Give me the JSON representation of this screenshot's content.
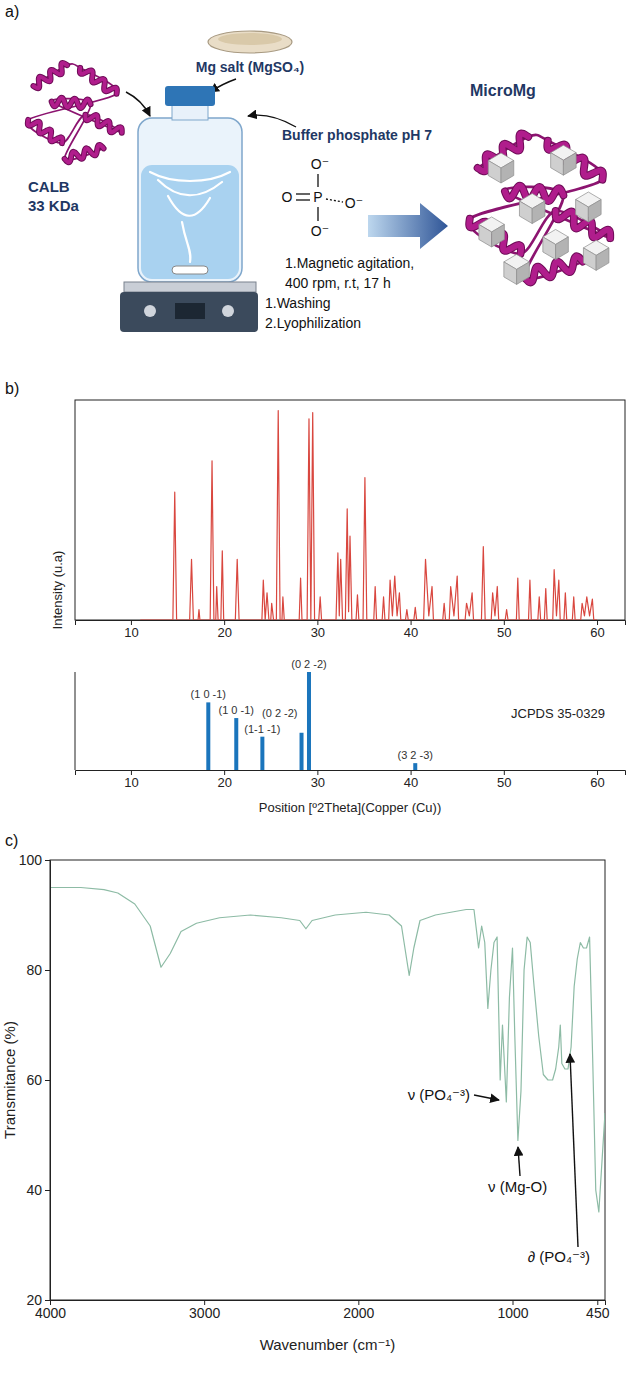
{
  "panel_labels": [
    "a)",
    "b)",
    "c)"
  ],
  "diagram": {
    "salt": "Mg salt (MgSO₄)",
    "enzyme": "CALB",
    "enzyme_mass": "33 KDa",
    "buffer": "Buffer phosphate pH 7",
    "phosphate": {
      "center": "P",
      "double_bonded": "O",
      "single_bonded": [
        "O⁻",
        "O⁻",
        "O⁻"
      ]
    },
    "steps": [
      "1.Magnetic agitation,",
      "400 rpm, r.t, 17 h",
      "1.Washing",
      "2.Lyophilization"
    ],
    "product": "MicroMg"
  },
  "chart_data": [
    {
      "type": "line",
      "y_label": "Intensity (u.a)",
      "x": [
        11.0,
        14.5,
        14.7,
        14.9,
        16.3,
        16.5,
        16.7,
        17.2,
        17.3,
        17.4,
        18.5,
        18.7,
        18.9,
        19.1,
        19.2,
        19.35,
        19.65,
        19.8,
        19.95,
        21.2,
        21.4,
        21.6,
        24.05,
        24.2,
        24.4,
        24.6,
        24.8,
        25.0,
        25.1,
        25.3,
        25.6,
        25.8,
        26.0,
        26.2,
        26.3,
        26.45,
        28.05,
        28.2,
        28.35,
        28.9,
        29.1,
        29.3,
        29.5,
        29.7,
        30.15,
        30.3,
        30.45,
        32.0,
        32.2,
        32.35,
        32.5,
        32.7,
        33.0,
        33.2,
        33.35,
        33.5,
        33.7,
        34.15,
        34.3,
        34.45,
        34.9,
        35.1,
        35.3,
        36.05,
        36.2,
        36.35,
        36.95,
        37.1,
        37.25,
        37.65,
        37.8,
        38.05,
        38.3,
        38.55,
        38.8,
        38.95,
        39.45,
        39.6,
        39.75,
        40.35,
        40.5,
        40.65,
        41.4,
        41.6,
        41.95,
        42.3,
        42.45,
        43.45,
        43.6,
        43.75,
        44.15,
        44.3,
        44.65,
        45.0,
        45.15,
        45.85,
        46.0,
        46.3,
        46.6,
        46.75,
        47.6,
        47.8,
        48.0,
        48.65,
        48.8,
        49.05,
        49.3,
        49.45,
        50.15,
        50.3,
        50.45,
        51.35,
        51.5,
        51.65,
        52.65,
        52.8,
        52.95,
        53.65,
        53.8,
        53.95,
        54.35,
        54.5,
        54.65,
        55.25,
        55.4,
        55.65,
        55.9,
        56.05,
        56.45,
        56.6,
        56.75,
        57.35,
        57.5,
        57.65,
        58.25,
        58.4,
        58.65,
        58.9,
        59.2,
        59.5,
        59.65,
        60.0
      ],
      "series": [
        {
          "color": "#d9473f",
          "values": [
            0,
            0,
            61,
            0,
            0,
            29,
            0,
            0,
            5,
            0,
            0,
            76,
            0,
            0,
            16,
            0,
            0,
            33,
            0,
            0,
            29,
            0,
            0,
            19,
            0,
            13,
            0,
            0,
            8,
            0,
            0,
            100,
            0,
            0,
            11,
            0,
            0,
            20,
            0,
            0,
            96,
            0,
            99,
            0,
            0,
            11,
            0,
            0,
            32,
            2,
            29,
            0,
            0,
            53,
            4,
            40,
            0,
            0,
            12,
            0,
            0,
            68,
            0,
            0,
            16,
            0,
            0,
            11,
            0,
            0,
            19,
            2,
            21,
            2,
            13,
            0,
            0,
            5,
            0,
            0,
            6,
            0,
            0,
            29,
            2,
            16,
            0,
            0,
            8,
            0,
            0,
            16,
            2,
            21,
            0,
            0,
            8,
            2,
            13,
            0,
            0,
            35,
            0,
            0,
            13,
            2,
            16,
            0,
            0,
            5,
            0,
            0,
            20,
            0,
            0,
            19,
            0,
            0,
            11,
            0,
            0,
            15,
            0,
            0,
            24,
            2,
            19,
            0,
            0,
            13,
            0,
            0,
            11,
            0,
            0,
            8,
            2,
            11,
            2,
            10,
            0,
            0
          ]
        }
      ],
      "xlim": [
        4,
        63
      ],
      "xticks": [
        10,
        20,
        30,
        40,
        50,
        60
      ],
      "ylim": [
        0,
        105
      ],
      "tick_labels": "x"
    },
    {
      "type": "bar",
      "title": "JCPDS 35-0329",
      "x_label": "Position [º2Theta](Copper (Cu))",
      "x": [
        18.3,
        21.3,
        24.1,
        28.3,
        29.1,
        40.5
      ],
      "values": [
        69,
        53,
        34,
        38,
        100,
        7
      ],
      "annotations": [
        "(1 0 -1)",
        "(1 0 -1)",
        "(1-1 -1)",
        "(0 2 -2)",
        "(0 2 -2)",
        "(3 2 -3)"
      ],
      "color": "#1b75bc",
      "xlim": [
        4,
        63
      ],
      "xticks": [
        10,
        20,
        30,
        40,
        50,
        60
      ],
      "ylim": [
        0,
        100
      ],
      "tick_labels": "x"
    },
    {
      "type": "line",
      "x_label": "Wavenumber (cm⁻¹)",
      "y_label": "Transmitance (%)",
      "x": [
        4000,
        3800,
        3650,
        3560,
        3450,
        3350,
        3280,
        3220,
        3150,
        3050,
        2900,
        2700,
        2500,
        2380,
        2340,
        2300,
        2150,
        1950,
        1800,
        1720,
        1670,
        1640,
        1600,
        1500,
        1400,
        1300,
        1250,
        1220,
        1200,
        1180,
        1160,
        1140,
        1120,
        1100,
        1080,
        1065,
        1040,
        1020,
        1000,
        985,
        965,
        945,
        925,
        905,
        885,
        860,
        830,
        800,
        770,
        740,
        720,
        700,
        690,
        680,
        660,
        640,
        620,
        600,
        580,
        560,
        540,
        520,
        500,
        480,
        460,
        440,
        420,
        400
      ],
      "series": [
        {
          "color": "#8dbba5",
          "values": [
            95,
            95,
            94.6,
            94,
            92,
            88,
            80.5,
            83,
            87,
            88.5,
            89.5,
            90,
            89.5,
            89,
            87.5,
            89,
            90,
            90.5,
            90,
            88,
            79,
            84,
            89,
            90,
            90.5,
            91,
            91,
            84,
            88,
            85,
            73,
            80,
            85,
            86,
            60,
            70,
            56,
            75,
            84,
            68,
            49,
            58,
            80,
            86,
            85,
            77,
            68,
            61,
            60,
            60,
            62,
            66,
            70,
            63,
            62,
            62,
            66,
            77,
            82,
            85,
            84,
            84,
            86,
            64,
            40,
            36,
            45,
            54
          ]
        }
      ],
      "xlim": [
        4000,
        400
      ],
      "xticks": [
        4000,
        3000,
        2000,
        1000,
        450
      ],
      "ylim": [
        20,
        100
      ],
      "yticks": [
        20,
        40,
        60,
        80,
        100
      ],
      "annotations": [
        "ν (PO₄⁻³)",
        "ν (Mg-O)",
        "∂ (PO₄⁻³)"
      ]
    }
  ]
}
